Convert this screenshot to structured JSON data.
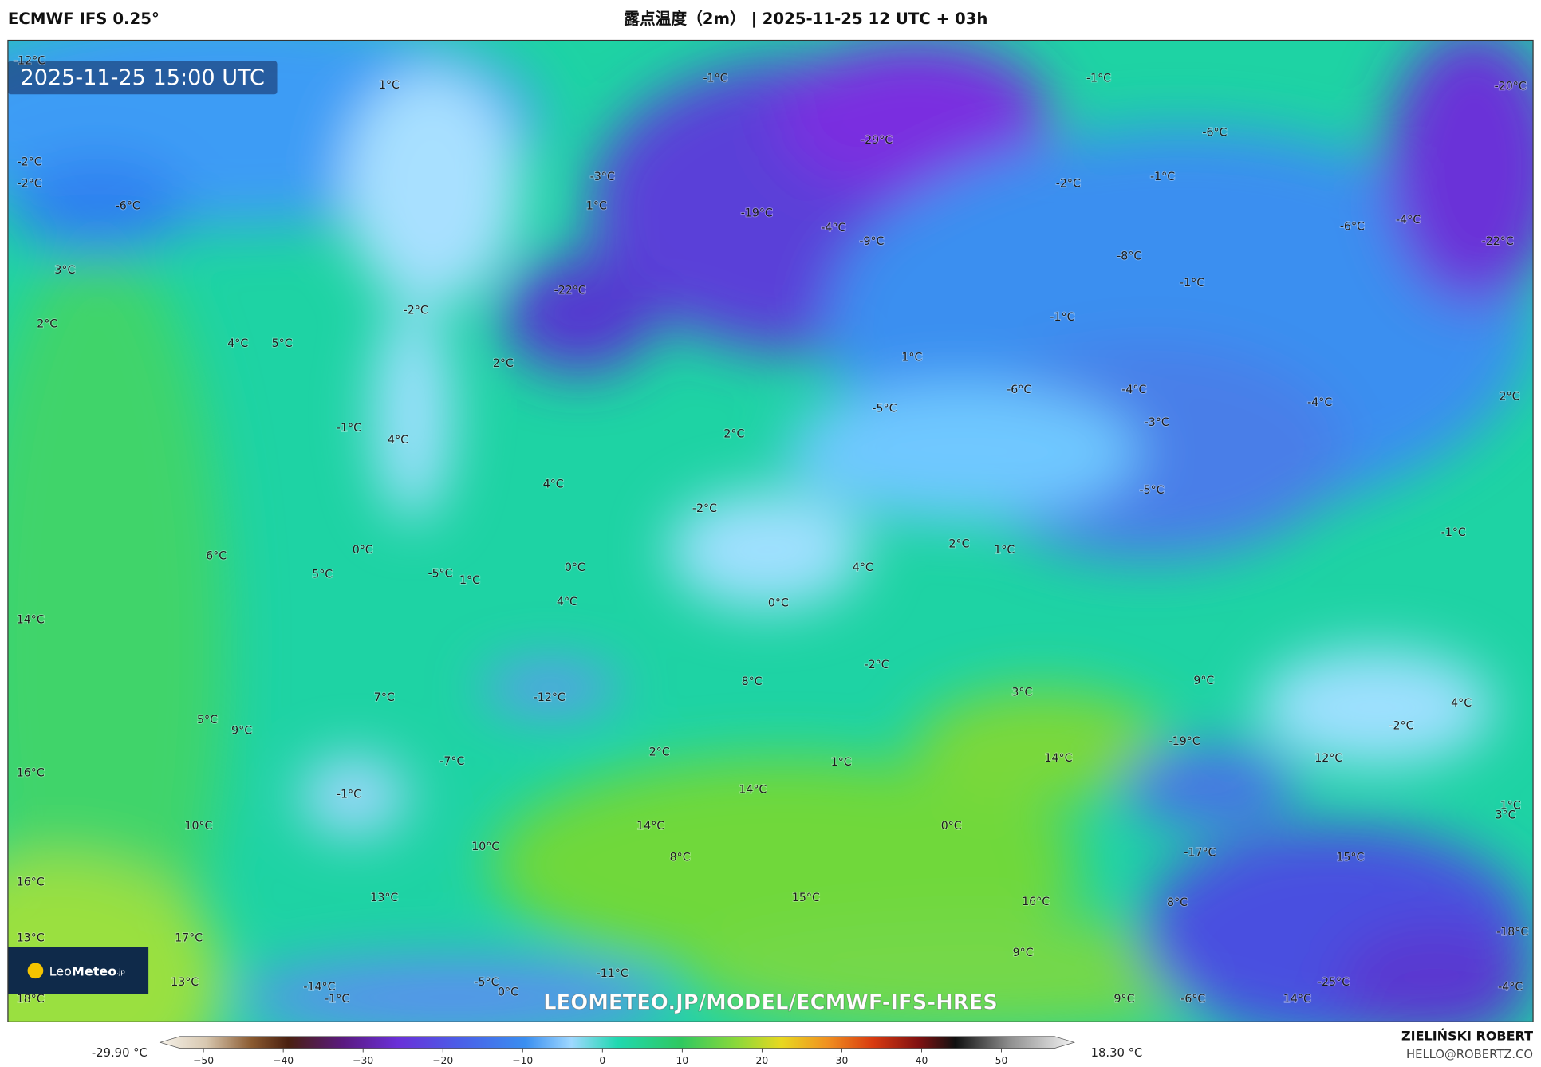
{
  "header": {
    "model": "ECMWF IFS 0.25°",
    "title": "露点温度（2m） | 2025-11-25 12 UTC + 03h"
  },
  "map": {
    "valid_time": "2025-11-25 15:00 UTC",
    "labels": [
      "-12°C",
      "1°C",
      "-1°C",
      "-1°C",
      "-20°C",
      "-29°C",
      "-6°C",
      "-2°C",
      "-2°C",
      "-6°C",
      "-3°C",
      "1°C",
      "-19°C",
      "-4°C",
      "-9°C",
      "-2°C",
      "-1°C",
      "-6°C",
      "-4°C",
      "-22°C",
      "3°C",
      "-8°C",
      "-1°C",
      "-22°C",
      "2°C",
      "-2°C",
      "-1°C",
      "4°C",
      "5°C",
      "2°C",
      "1°C",
      "-6°C",
      "-4°C",
      "-5°C",
      "-4°C",
      "2°C",
      "-1°C",
      "4°C",
      "2°C",
      "-3°C",
      "4°C",
      "-5°C",
      "-2°C",
      "-1°C",
      "0°C",
      "6°C",
      "2°C",
      "1°C",
      "5°C",
      "-5°C",
      "1°C",
      "0°C",
      "4°C",
      "4°C",
      "0°C",
      "14°C",
      "-2°C",
      "9°C",
      "8°C",
      "3°C",
      "7°C",
      "-12°C",
      "4°C",
      "5°C",
      "9°C",
      "-2°C",
      "-19°C",
      "2°C",
      "-7°C",
      "14°C",
      "12°C",
      "1°C",
      "16°C",
      "-1°C",
      "14°C",
      "1°C",
      "3°C",
      "10°C",
      "14°C",
      "0°C",
      "10°C",
      "-17°C",
      "8°C",
      "15°C",
      "16°C",
      "13°C",
      "15°C",
      "16°C",
      "8°C",
      "-18°C",
      "13°C",
      "17°C",
      "9°C",
      "13°C",
      "-14°C",
      "-5°C",
      "-11°C",
      "-25°C",
      "-4°C",
      "18°C",
      "-1°C",
      "0°C",
      "9°C",
      "-6°C",
      "14°C"
    ],
    "watermark": "LEOMETEO.JP/MODEL/ECMWF-IFS-HRES"
  },
  "logo": {
    "light": "Leo",
    "bold": "Meteo",
    "suffix": ".jp"
  },
  "colorbar": {
    "min_label": "-29.90 °C",
    "max_label": "18.30 °C",
    "ticks": [
      {
        "value": -50,
        "label": "−50"
      },
      {
        "value": -40,
        "label": "−40"
      },
      {
        "value": -30,
        "label": "−30"
      },
      {
        "value": -20,
        "label": "−20"
      },
      {
        "value": -10,
        "label": "−10"
      },
      0,
      10,
      20,
      30,
      40,
      50
    ]
  },
  "author": {
    "name": "ZIELIŃSKI ROBERT",
    "email": "HELLO@ROBERTZ.CO"
  }
}
